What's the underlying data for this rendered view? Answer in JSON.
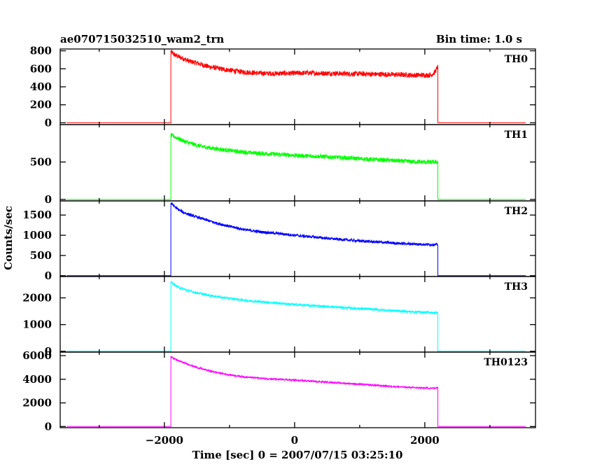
{
  "header": {
    "title": "ae070715032510_wam2_trn",
    "bin_time": "Bin time: 1.0 s"
  },
  "chart_data": {
    "type": "line",
    "title": "ae070715032510_wam2_trn",
    "xlabel": "Time [sec] 0 = 2007/07/15 03:25:10",
    "ylabel": "Counts/sec",
    "xlim": [
      -3600,
      3700
    ],
    "x_ticks": [
      -2000,
      0,
      2000
    ],
    "x_tick_labels": [
      "−2000",
      "0",
      "2000"
    ],
    "onset": -1900,
    "end": 2200,
    "grid": false,
    "legend": "none",
    "series": [
      {
        "name": "TH0",
        "color": "#ff0000",
        "ylim": [
          -20,
          820
        ],
        "yticks": [
          0,
          200,
          400,
          600,
          800
        ],
        "baseline": 0,
        "x": [
          -1900,
          -1850,
          -1800,
          -1700,
          -1600,
          -1500,
          -1400,
          -1300,
          -1200,
          -1100,
          -1000,
          -900,
          -800,
          -700,
          -600,
          -500,
          -400,
          -300,
          -200,
          -100,
          0,
          200,
          400,
          600,
          800,
          1000,
          1200,
          1400,
          1600,
          1800,
          2000,
          2100,
          2150,
          2200
        ],
        "y": [
          790,
          760,
          740,
          710,
          680,
          665,
          640,
          620,
          610,
          595,
          585,
          575,
          565,
          560,
          555,
          550,
          548,
          548,
          550,
          550,
          550,
          555,
          550,
          550,
          545,
          545,
          540,
          538,
          535,
          530,
          530,
          530,
          560,
          620
        ],
        "noise": 28
      },
      {
        "name": "TH1",
        "color": "#00ff00",
        "ylim": [
          -20,
          1000
        ],
        "yticks": [
          0,
          500
        ],
        "baseline": 0,
        "x": [
          -1900,
          -1850,
          -1800,
          -1700,
          -1600,
          -1500,
          -1400,
          -1300,
          -1200,
          -1100,
          -1000,
          -900,
          -800,
          -700,
          -600,
          -500,
          -400,
          -300,
          -200,
          -100,
          0,
          200,
          400,
          600,
          800,
          1000,
          1200,
          1400,
          1600,
          1800,
          2000,
          2100,
          2150,
          2200
        ],
        "y": [
          860,
          840,
          820,
          780,
          750,
          725,
          705,
          690,
          675,
          665,
          655,
          645,
          635,
          625,
          620,
          615,
          610,
          605,
          600,
          595,
          590,
          580,
          575,
          565,
          555,
          545,
          535,
          525,
          515,
          505,
          500,
          498,
          500,
          505
        ],
        "noise": 28
      },
      {
        "name": "TH2",
        "color": "#0000ff",
        "ylim": [
          -20,
          1850
        ],
        "yticks": [
          0,
          500,
          1000,
          1500
        ],
        "baseline": 0,
        "x": [
          -1900,
          -1850,
          -1800,
          -1700,
          -1600,
          -1500,
          -1400,
          -1300,
          -1200,
          -1100,
          -1000,
          -900,
          -800,
          -700,
          -600,
          -500,
          -400,
          -300,
          -200,
          -100,
          0,
          200,
          400,
          600,
          800,
          1000,
          1200,
          1400,
          1600,
          1800,
          2000,
          2100,
          2150,
          2200
        ],
        "y": [
          1800,
          1720,
          1650,
          1560,
          1500,
          1450,
          1400,
          1350,
          1300,
          1260,
          1220,
          1185,
          1150,
          1120,
          1100,
          1080,
          1065,
          1050,
          1035,
          1020,
          1000,
          970,
          940,
          910,
          885,
          860,
          840,
          820,
          800,
          785,
          775,
          770,
          770,
          770
        ],
        "noise": 35
      },
      {
        "name": "TH3",
        "color": "#00ffff",
        "ylim": [
          -30,
          2800
        ],
        "yticks": [
          0,
          1000,
          2000
        ],
        "baseline": 0,
        "x": [
          -1900,
          -1850,
          -1800,
          -1700,
          -1600,
          -1500,
          -1400,
          -1300,
          -1200,
          -1100,
          -1000,
          -900,
          -800,
          -700,
          -600,
          -500,
          -400,
          -300,
          -200,
          -100,
          0,
          200,
          400,
          600,
          800,
          1000,
          1200,
          1400,
          1600,
          1800,
          2000,
          2100,
          2150,
          2200
        ],
        "y": [
          2600,
          2500,
          2420,
          2320,
          2250,
          2190,
          2140,
          2090,
          2050,
          2010,
          1980,
          1950,
          1920,
          1890,
          1870,
          1850,
          1830,
          1810,
          1790,
          1770,
          1750,
          1720,
          1690,
          1660,
          1630,
          1600,
          1570,
          1540,
          1510,
          1480,
          1460,
          1450,
          1440,
          1450
        ],
        "noise": 45
      },
      {
        "name": "TH0123",
        "color": "#ff00ff",
        "ylim": [
          -100,
          6300
        ],
        "yticks": [
          0,
          2000,
          4000,
          6000
        ],
        "baseline": 0,
        "x": [
          -1900,
          -1850,
          -1800,
          -1700,
          -1600,
          -1500,
          -1400,
          -1300,
          -1200,
          -1100,
          -1000,
          -900,
          -800,
          -700,
          -600,
          -500,
          -400,
          -300,
          -200,
          -100,
          0,
          200,
          400,
          600,
          800,
          1000,
          1200,
          1400,
          1600,
          1800,
          2000,
          2100,
          2150,
          2200
        ],
        "y": [
          5900,
          5750,
          5600,
          5400,
          5200,
          5000,
          4850,
          4700,
          4580,
          4470,
          4380,
          4300,
          4230,
          4170,
          4120,
          4080,
          4040,
          4010,
          3980,
          3950,
          3920,
          3860,
          3790,
          3720,
          3650,
          3580,
          3500,
          3430,
          3360,
          3300,
          3250,
          3240,
          3250,
          3300
        ],
        "noise": 70
      }
    ]
  }
}
